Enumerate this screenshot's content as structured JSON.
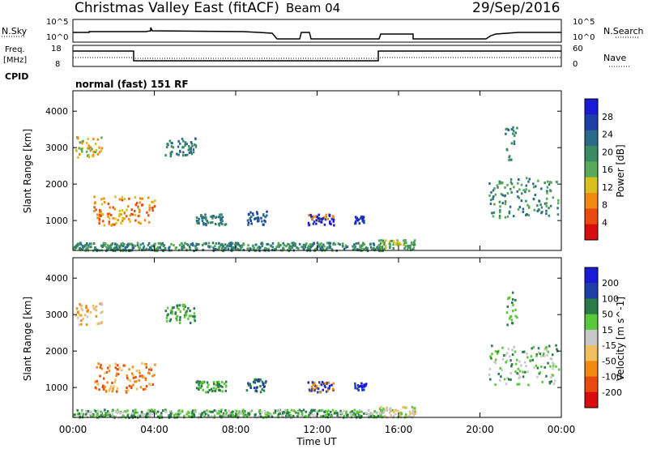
{
  "header": {
    "title": "Christmas Valley East (fitACF)",
    "beam": "Beam 04",
    "date": "29/Sep/2016"
  },
  "top_panels": {
    "nsky_label": "N.Sky",
    "nsky_ticks": [
      "10^5",
      "10^0"
    ],
    "nsearch_label": "N.Search",
    "nsearch_ticks": [
      "10^5",
      "10^0"
    ],
    "freq_label_line1": "Freq.",
    "freq_label_line2": "[MHz]",
    "freq_ticks": [
      "18",
      "8"
    ],
    "nave_label": "Nave",
    "nave_ticks": [
      "60",
      "0"
    ],
    "cpid_label": "CPID",
    "cpid_value": "normal (fast) 151 RF"
  },
  "colors": {
    "power": [
      "#1b1bd6",
      "#1f3fa8",
      "#2a6a8a",
      "#3a8a62",
      "#58a85a",
      "#d8c020",
      "#f08a10",
      "#e84a10",
      "#d80e0e"
    ],
    "velocity": [
      "#1b1bd6",
      "#1f3fa8",
      "#2a7a4a",
      "#5ac83a",
      "#c8c8c8",
      "#f0c060",
      "#f08a10",
      "#e84a10",
      "#d80e0e"
    ]
  },
  "chart_data": [
    {
      "type": "heatmap",
      "name": "power",
      "ylabel": "Slant Range [km]",
      "yticks": [
        "4000",
        "3000",
        "2000",
        "1000"
      ],
      "ylim": [
        180,
        4560
      ],
      "colorbar_label": "Power [dB]",
      "colorbar_ticks": [
        "28",
        "24",
        "20",
        "16",
        "12",
        "8",
        "4"
      ],
      "xlim": [
        0,
        24
      ]
    },
    {
      "type": "heatmap",
      "name": "velocity",
      "ylabel": "Slant Range [km]",
      "yticks": [
        "4000",
        "3000",
        "2000",
        "1000"
      ],
      "ylim": [
        180,
        4560
      ],
      "colorbar_label": "Velocity [m s^-1]",
      "colorbar_ticks": [
        "200",
        "100",
        "50",
        "15",
        "-15",
        "-50",
        "-100",
        "-200"
      ],
      "xlim": [
        0,
        24
      ]
    }
  ],
  "x_axis": {
    "ticks": [
      "00:00",
      "04:00",
      "08:00",
      "12:00",
      "16:00",
      "20:00",
      "00:00"
    ],
    "label": "Time UT"
  }
}
